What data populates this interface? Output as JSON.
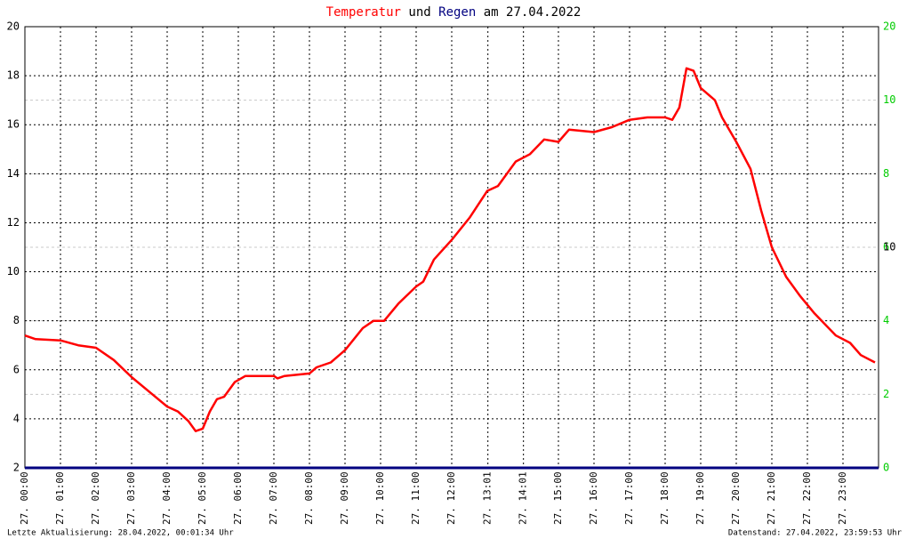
{
  "chart_data": {
    "type": "line",
    "title_parts": [
      {
        "text": "Temperatur",
        "color": "#ff0000"
      },
      {
        "text": "und",
        "color": "#000000"
      },
      {
        "text": "Regen",
        "color": "#000080"
      },
      {
        "text": "am 27.04.2022",
        "color": "#000000"
      }
    ],
    "xlim": [
      0,
      24
    ],
    "xticks": [
      {
        "value": 0,
        "label": "27. 00:00"
      },
      {
        "value": 1,
        "label": "27. 01:00"
      },
      {
        "value": 2,
        "label": "27. 02:00"
      },
      {
        "value": 3,
        "label": "27. 03:00"
      },
      {
        "value": 4,
        "label": "27. 04:00"
      },
      {
        "value": 5,
        "label": "27. 05:00"
      },
      {
        "value": 6,
        "label": "27. 06:00"
      },
      {
        "value": 7,
        "label": "27. 07:00"
      },
      {
        "value": 8,
        "label": "27. 08:00"
      },
      {
        "value": 9,
        "label": "27. 09:00"
      },
      {
        "value": 10,
        "label": "27. 10:00"
      },
      {
        "value": 11,
        "label": "27. 11:00"
      },
      {
        "value": 12,
        "label": "27. 12:00"
      },
      {
        "value": 13.017,
        "label": "27. 13:01"
      },
      {
        "value": 14.017,
        "label": "27. 14:01"
      },
      {
        "value": 15,
        "label": "27. 15:00"
      },
      {
        "value": 16,
        "label": "27. 16:00"
      },
      {
        "value": 17,
        "label": "27. 17:00"
      },
      {
        "value": 18,
        "label": "27. 18:00"
      },
      {
        "value": 19,
        "label": "27. 19:00"
      },
      {
        "value": 20,
        "label": "27. 20:00"
      },
      {
        "value": 21,
        "label": "27. 21:00"
      },
      {
        "value": 22,
        "label": "27. 22:00"
      },
      {
        "value": 23,
        "label": "27. 23:00"
      }
    ],
    "ylim": [
      2,
      20
    ],
    "yticks": [
      2,
      4,
      6,
      8,
      10,
      12,
      14,
      16,
      18,
      20
    ],
    "y2lim": [
      0,
      12
    ],
    "y2ticks": [
      0,
      2,
      4,
      6,
      8,
      10
    ],
    "y2color": "#00cc00",
    "y3lim": [
      0,
      20
    ],
    "y3ticks": [
      10,
      20
    ],
    "grid": true,
    "series": [
      {
        "name": "Temperatur",
        "color": "#ff0000",
        "x": [
          0,
          0.3,
          1.0,
          1.5,
          2.0,
          2.5,
          3.0,
          3.5,
          4.0,
          4.3,
          4.6,
          4.8,
          5.0,
          5.2,
          5.4,
          5.6,
          5.9,
          6.2,
          7.0,
          7.1,
          7.3,
          8.0,
          8.2,
          8.6,
          9.0,
          9.5,
          9.8,
          10.1,
          10.5,
          11.0,
          11.2,
          11.5,
          12.0,
          12.5,
          13.0,
          13.3,
          13.8,
          14.2,
          14.6,
          15.0,
          15.3,
          16.0,
          16.5,
          17.0,
          17.5,
          18.0,
          18.2,
          18.4,
          18.6,
          18.8,
          19.0,
          19.4,
          19.6,
          20.0,
          20.4,
          20.7,
          21.0,
          21.4,
          21.8,
          22.2,
          22.8,
          23.2,
          23.5,
          23.9
        ],
        "values": [
          7.4,
          7.25,
          7.2,
          7.0,
          6.9,
          6.4,
          5.7,
          5.1,
          4.5,
          4.3,
          3.9,
          3.5,
          3.6,
          4.3,
          4.8,
          4.9,
          5.5,
          5.75,
          5.75,
          5.65,
          5.75,
          5.85,
          6.1,
          6.3,
          6.8,
          7.7,
          8.0,
          8.0,
          8.7,
          9.4,
          9.6,
          10.5,
          11.3,
          12.2,
          13.3,
          13.5,
          14.5,
          14.8,
          15.4,
          15.3,
          15.8,
          15.7,
          15.9,
          16.2,
          16.3,
          16.3,
          16.2,
          16.7,
          18.3,
          18.2,
          17.5,
          17.0,
          16.3,
          15.3,
          14.2,
          12.5,
          11.0,
          9.8,
          9.0,
          8.3,
          7.4,
          7.1,
          6.6,
          6.3
        ]
      },
      {
        "name": "Regen",
        "color": "#000080",
        "axis": "y2",
        "x": [
          0,
          24
        ],
        "values": [
          0,
          0
        ]
      }
    ],
    "footer_left": "Letzte Aktualisierung: 28.04.2022, 00:01:34 Uhr",
    "footer_right": "Datenstand: 27.04.2022, 23:59:53 Uhr"
  }
}
